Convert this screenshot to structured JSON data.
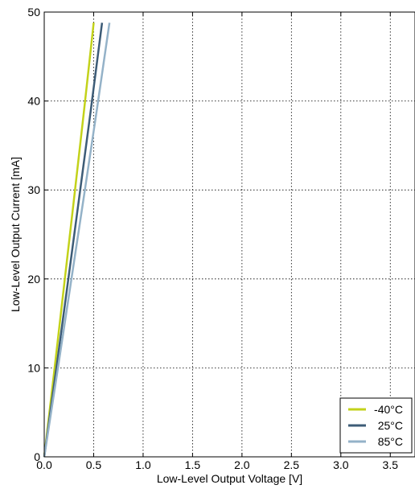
{
  "chart_data": {
    "type": "line",
    "title": "",
    "xlabel": "Low-Level Output Voltage [V]",
    "ylabel": "Low-Level Output Current [mA]",
    "xlim": [
      0,
      3.75
    ],
    "ylim": [
      0,
      50
    ],
    "xticks": [
      0.0,
      0.5,
      1.0,
      1.5,
      2.0,
      2.5,
      3.0,
      3.5
    ],
    "xtick_labels": [
      "0.0",
      "0.5",
      "1.0",
      "1.5",
      "2.0",
      "2.5",
      "3.0",
      "3.5"
    ],
    "yticks": [
      0,
      10,
      20,
      30,
      40,
      50
    ],
    "ytick_labels": [
      "0",
      "10",
      "20",
      "30",
      "40",
      "50"
    ],
    "grid": true,
    "legend_position": "bottom-right",
    "series": [
      {
        "name": "-40°C",
        "color": "#c3d21a",
        "x": [
          0.0,
          0.1,
          0.2,
          0.3,
          0.4,
          0.5
        ],
        "y": [
          0,
          9.5,
          19.2,
          28.9,
          38.7,
          48.8
        ]
      },
      {
        "name": "25°C",
        "color": "#3d5c77",
        "x": [
          0.0,
          0.117,
          0.234,
          0.351,
          0.468,
          0.585
        ],
        "y": [
          0,
          9.5,
          19.2,
          28.9,
          38.7,
          48.8
        ]
      },
      {
        "name": "85°C",
        "color": "#94b2c8",
        "x": [
          0.0,
          0.132,
          0.264,
          0.396,
          0.528,
          0.66
        ],
        "y": [
          0,
          9.5,
          19.2,
          28.9,
          38.7,
          48.8
        ]
      }
    ]
  }
}
